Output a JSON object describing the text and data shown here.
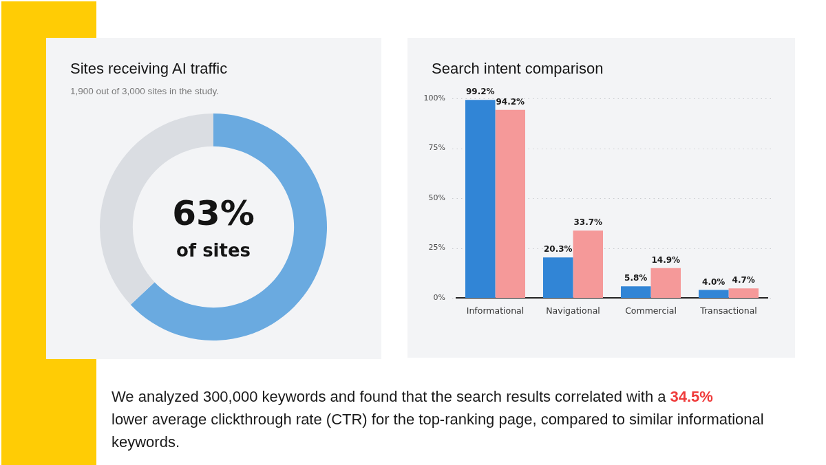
{
  "chart_data": [
    {
      "type": "donut",
      "title": "Sites receiving AI traffic",
      "subtitle": "1,900 out of 3,000 sites in the study.",
      "categories": [
        null,
        null
      ],
      "values": [
        63,
        37
      ],
      "colors": [
        "#6aaae0",
        "#dadde2"
      ],
      "value_labels": [
        "63%",
        null
      ],
      "annotations": [
        "of sites"
      ]
    },
    {
      "type": "bar",
      "title": "Search intent comparison",
      "categories": [
        "Informational",
        "Navigational",
        "Commercial",
        "Transactional"
      ],
      "series": [
        {
          "color": "#3185d6",
          "values": [
            99.2,
            20.3,
            5.8,
            4.0
          ],
          "value_labels": [
            "99.2%",
            "20.3%",
            "5.8%",
            "4.0%"
          ]
        },
        {
          "color": "#f59999",
          "values": [
            94.2,
            33.7,
            14.9,
            4.7
          ],
          "value_labels": [
            "94.2%",
            "33.7%",
            "14.9%",
            "4.7%"
          ]
        }
      ],
      "ylim": [
        0,
        100
      ],
      "yticks": [
        {
          "value": 0,
          "label": "0%"
        },
        {
          "value": 25,
          "label": "25%"
        },
        {
          "value": 50,
          "label": "50%"
        },
        {
          "value": 75,
          "label": "75%"
        },
        {
          "value": 100,
          "label": "100%"
        }
      ],
      "grid": "y"
    },
    {
      "type": "other",
      "annotations": [
        "We analyzed 300,000 keywords and found that the search results correlated with a ",
        "34.5%",
        " lower average clickthrough rate (CTR) for the top-ranking page, compared to similar informational keywords."
      ]
    }
  ]
}
